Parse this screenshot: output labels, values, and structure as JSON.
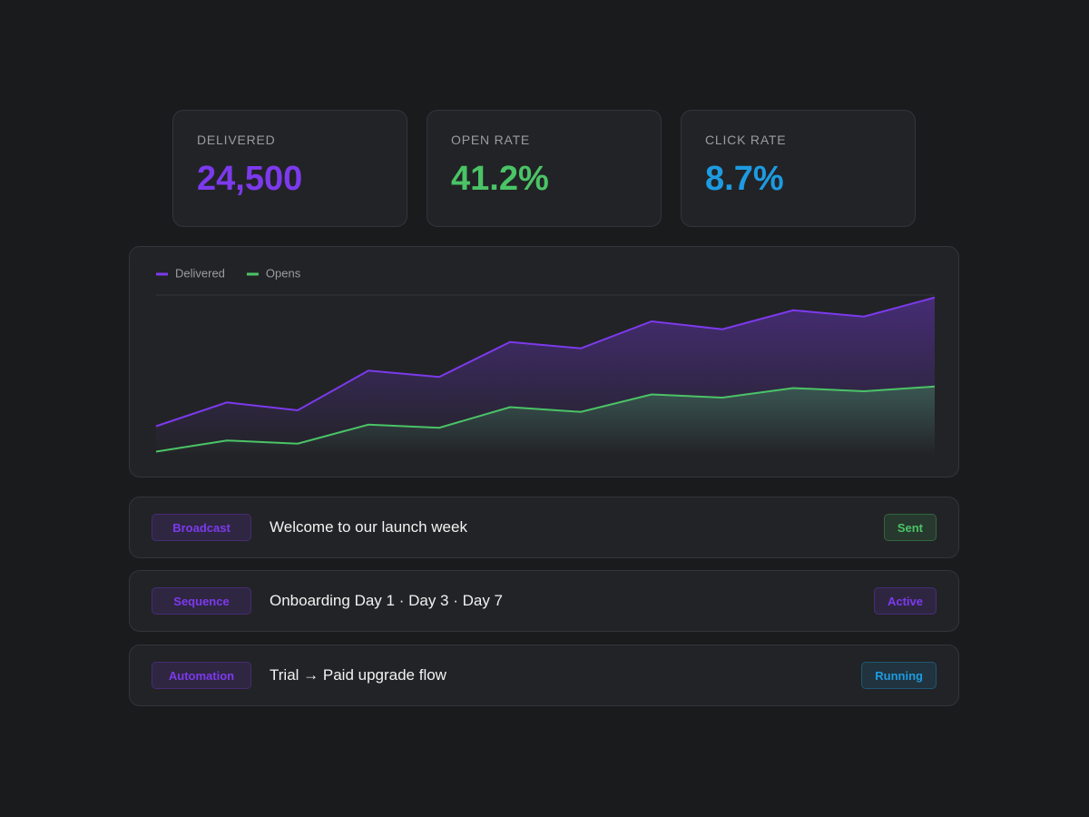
{
  "stats": [
    {
      "label": "DELIVERED",
      "value": "24,500",
      "color": "#7c3aed"
    },
    {
      "label": "OPEN RATE",
      "value": "41.2%",
      "color": "#4ac466"
    },
    {
      "label": "CLICK RATE",
      "value": "8.7%",
      "color": "#1d9be2"
    }
  ],
  "chart_data": {
    "type": "line",
    "categories": [
      null,
      null,
      null,
      null,
      null,
      null,
      null,
      null,
      null,
      null,
      null,
      null
    ],
    "series": [
      {
        "name": "Delivered",
        "color": "#7c3aed",
        "values": [
          18,
          33,
          28,
          53,
          49,
          71,
          67,
          84,
          79,
          91,
          87,
          99
        ]
      },
      {
        "name": "Opens",
        "color": "#4ac466",
        "values": [
          2,
          9,
          7,
          19,
          17,
          30,
          27,
          38,
          36,
          42,
          40,
          43
        ]
      }
    ],
    "ylim": [
      0,
      100
    ],
    "legend": "top-left"
  },
  "campaigns": [
    {
      "type": "Broadcast",
      "title": "Welcome to our launch week",
      "status": "Sent",
      "status_color": "#4ac466"
    },
    {
      "type": "Sequence",
      "title": "Onboarding Day 1 · Day 3 · Day 7",
      "status": "Active",
      "status_color": "#7c3aed"
    },
    {
      "type": "Automation",
      "title": "Trial → Paid upgrade flow",
      "status": "Running",
      "status_color": "#1d9be2"
    }
  ]
}
